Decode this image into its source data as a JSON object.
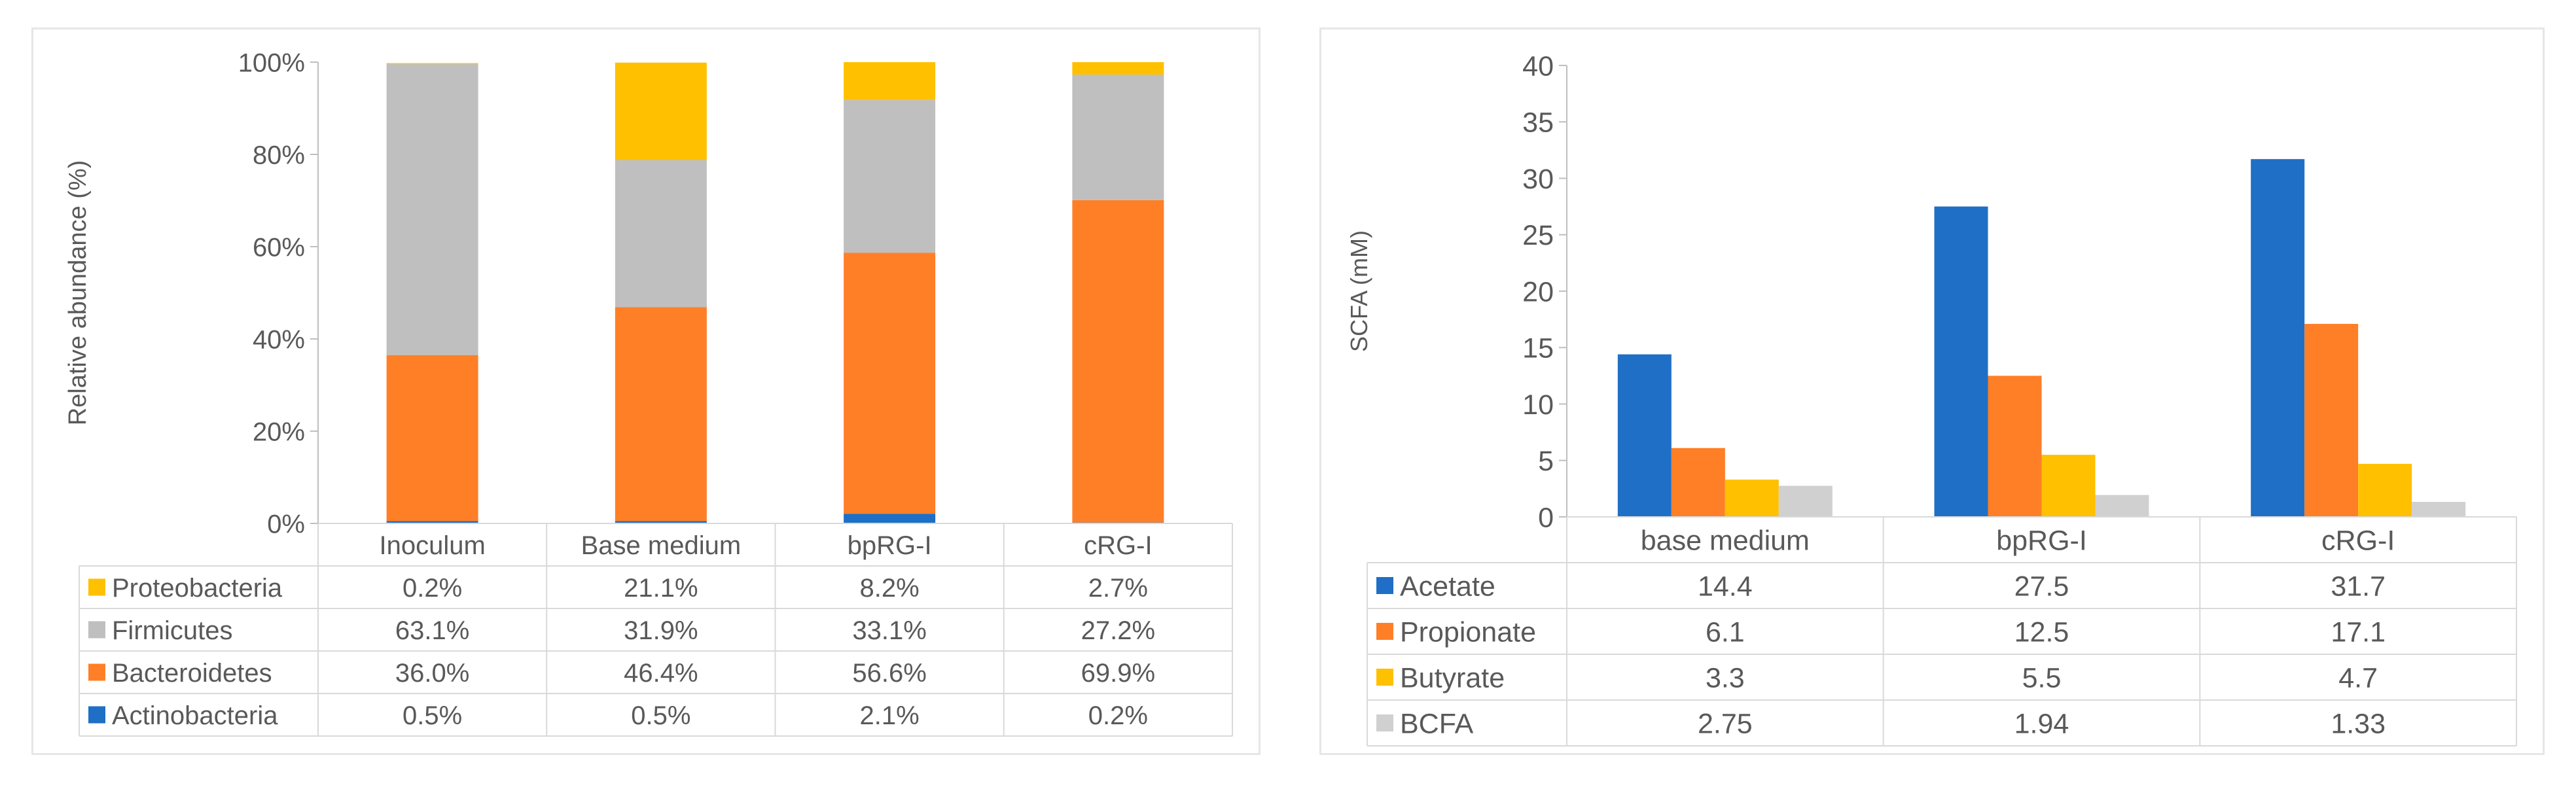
{
  "chart_data": [
    {
      "type": "bar",
      "stacked": true,
      "percent": true,
      "ylabel": "Relative abundance (%)",
      "ylim": [
        0,
        100
      ],
      "yticks": [
        "0%",
        "20%",
        "40%",
        "60%",
        "80%",
        "100%"
      ],
      "grid": false,
      "legend_placement": "data table",
      "categories": [
        "Inoculum",
        "Base medium",
        "bpRG-I",
        "cRG-I"
      ],
      "series": [
        {
          "name": "Proteobacteria",
          "color": "#ffc000",
          "values": [
            0.2,
            21.1,
            8.2,
            2.7
          ],
          "labels": [
            "0.2%",
            "21.1%",
            "8.2%",
            "2.7%"
          ]
        },
        {
          "name": "Firmicutes",
          "color": "#bfbfbf",
          "values": [
            63.1,
            31.9,
            33.1,
            27.2
          ],
          "labels": [
            "63.1%",
            "31.9%",
            "33.1%",
            "27.2%"
          ]
        },
        {
          "name": "Bacteroidetes",
          "color": "#ff7f27",
          "values": [
            36.0,
            46.4,
            56.6,
            69.9
          ],
          "labels": [
            "36.0%",
            "46.4%",
            "56.6%",
            "69.9%"
          ]
        },
        {
          "name": "Actinobacteria",
          "color": "#1f6fc6",
          "values": [
            0.5,
            0.5,
            2.1,
            0.2
          ],
          "labels": [
            "0.5%",
            "0.5%",
            "2.1%",
            "0.2%"
          ]
        }
      ]
    },
    {
      "type": "bar",
      "stacked": false,
      "ylabel": "SCFA (mM)",
      "ylim": [
        0,
        40
      ],
      "yticks": [
        "0",
        "5",
        "10",
        "15",
        "20",
        "25",
        "30",
        "35",
        "40"
      ],
      "grid": false,
      "legend_placement": "data table",
      "categories": [
        "base medium",
        "bpRG-I",
        "cRG-I"
      ],
      "series": [
        {
          "name": "Acetate",
          "color": "#1f6fc6",
          "values": [
            14.4,
            27.5,
            31.7
          ],
          "labels": [
            "14.4",
            "27.5",
            "31.7"
          ]
        },
        {
          "name": "Propionate",
          "color": "#ff7f27",
          "values": [
            6.1,
            12.5,
            17.1
          ],
          "labels": [
            "6.1",
            "12.5",
            "17.1"
          ]
        },
        {
          "name": "Butyrate",
          "color": "#ffc000",
          "values": [
            3.3,
            5.5,
            4.7
          ],
          "labels": [
            "3.3",
            "5.5",
            "4.7"
          ]
        },
        {
          "name": "BCFA",
          "color": "#d0d0d0",
          "values": [
            2.75,
            1.94,
            1.33
          ],
          "labels": [
            "2.75",
            "1.94",
            "1.33"
          ]
        }
      ]
    }
  ]
}
